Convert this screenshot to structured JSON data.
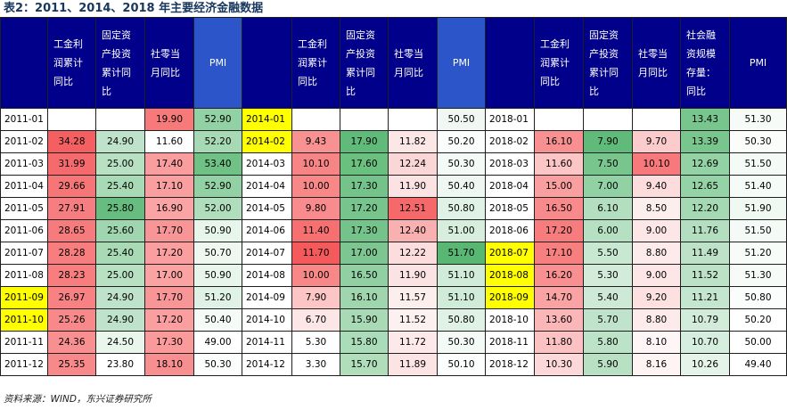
{
  "title": "表2：2011、2014、2018 年主要经济金融数据",
  "source": "资料来源：WIND，东兴证券研究所",
  "headers": [
    "",
    "工金利润累计同比",
    "固定资产投资累计同比",
    "社零当月同比",
    "PMI",
    "",
    "工金利润累计同比",
    "固定资产投资累计同比",
    "社零当月同比",
    "PMI",
    "",
    "工金利润累计同比",
    "固定资产投资累计同比",
    "社零当月同比",
    "社会融资规模存量：同比",
    "PMI"
  ],
  "colors": {
    "header_bg": "#00008b",
    "highlight_date": "#ffff00",
    "red_high": "#ef5350",
    "green_high": "#4caf6a"
  },
  "rows": [
    {
      "cells": [
        "2011-01",
        "",
        "",
        "19.90",
        "52.90",
        "2014-01",
        "",
        "",
        "",
        "50.50",
        "2018-01",
        "",
        "",
        "",
        "13.43",
        "51.30"
      ],
      "bg": [
        "",
        "",
        "",
        "#f77a7b",
        "#92d1a3",
        "#ffff00",
        "",
        "",
        "",
        "#f1f8f3",
        "",
        "",
        "",
        "",
        "#79c58e",
        "#f6fbf7"
      ]
    },
    {
      "cells": [
        "2011-02",
        "34.28",
        "24.90",
        "11.60",
        "52.20",
        "2014-02",
        "9.43",
        "17.90",
        "11.82",
        "50.20",
        "2018-02",
        "16.10",
        "7.90",
        "9.70",
        "13.39",
        "50.30"
      ],
      "bg": [
        "",
        "#f45f61",
        "#bfe3ca",
        "",
        "#a6d9b4",
        "#ffff00",
        "#f89192",
        "#60bb7a",
        "#fce7e7",
        "#fafdfb",
        "",
        "#f89091",
        "#60bb7a",
        "#fccccd",
        "#79c58e",
        "#fbfdfb"
      ]
    },
    {
      "cells": [
        "2011-03",
        "31.99",
        "25.00",
        "17.40",
        "53.40",
        "2014-03",
        "10.10",
        "17.60",
        "12.24",
        "50.30",
        "2018-03",
        "11.60",
        "7.50",
        "10.10",
        "12.69",
        "51.50"
      ],
      "bg": [
        "",
        "#f56b6d",
        "#b8e1c3",
        "#f99d9e",
        "#6fc186",
        "",
        "#f88586",
        "#6ac07f",
        "#fbd6d6",
        "#f4faf6",
        "",
        "#fcc5c6",
        "#79c58e",
        "#f7797b",
        "#93d2a5",
        "#f4faf6"
      ]
    },
    {
      "cells": [
        "2011-04",
        "29.66",
        "25.40",
        "17.10",
        "52.90",
        "2014-04",
        "10.00",
        "17.30",
        "11.90",
        "50.40",
        "2018-04",
        "15.00",
        "7.00",
        "9.40",
        "12.65",
        "51.40"
      ],
      "bg": [
        "",
        "#f67677",
        "#a9dab6",
        "#fa9fa0",
        "#92d1a3",
        "",
        "#f88788",
        "#74c38a",
        "#fce3e3",
        "#eef7f1",
        "",
        "#f99fa0",
        "#91d1a4",
        "#fcdcdc",
        "#94d3a6",
        "#f5fbf7"
      ]
    },
    {
      "cells": [
        "2011-05",
        "27.91",
        "25.80",
        "16.90",
        "52.00",
        "2014-05",
        "9.80",
        "17.20",
        "12.51",
        "50.80",
        "2018-05",
        "16.50",
        "6.10",
        "8.50",
        "12.20",
        "51.90"
      ],
      "bg": [
        "",
        "#f77e80",
        "#67bd7f",
        "#fba4a5",
        "#b0ddbc",
        "",
        "#f88b8d",
        "#77c48c",
        "#f6696b",
        "#e0f2e5",
        "",
        "#f88a8b",
        "#b3dfc0",
        "#fdeeee",
        "#a4d9b3",
        "#f0f8f2"
      ]
    },
    {
      "cells": [
        "2011-06",
        "28.65",
        "25.60",
        "17.70",
        "50.90",
        "2014-06",
        "11.40",
        "17.30",
        "12.40",
        "51.00",
        "2018-06",
        "17.20",
        "6.00",
        "9.00",
        "11.76",
        "51.50"
      ],
      "bg": [
        "",
        "#f67b7c",
        "#a0d6af",
        "#f89697",
        "#e7f5ea",
        "",
        "#f67071",
        "#74c38a",
        "#f9b0b1",
        "#d7eedd",
        "",
        "#f77c7e",
        "#b5e0c2",
        "#fde6e6",
        "#b3dfc0",
        "#f4faf6"
      ]
    },
    {
      "cells": [
        "2011-07",
        "28.28",
        "25.40",
        "17.20",
        "50.70",
        "2014-07",
        "11.70",
        "17.00",
        "12.22",
        "51.70",
        "2018-07",
        "17.10",
        "5.50",
        "8.80",
        "11.49",
        "51.20"
      ],
      "bg": [
        "",
        "#f77d7e",
        "#a9dab6",
        "#fa9e9f",
        "#eef8f1",
        "",
        "#f4595b",
        "#7dc691",
        "#fbdddd",
        "#59b774",
        "#ffff00",
        "#f87f80",
        "#c9e8d2",
        "#fdeaea",
        "#bde2c8",
        "#f7fcf8"
      ]
    },
    {
      "cells": [
        "2011-08",
        "28.23",
        "25.00",
        "17.00",
        "50.90",
        "2014-08",
        "10.00",
        "16.50",
        "11.90",
        "51.10",
        "2018-08",
        "16.20",
        "5.30",
        "9.00",
        "11.52",
        "51.30"
      ],
      "bg": [
        "",
        "#f77d7f",
        "#b8e1c3",
        "#fba2a3",
        "#e7f5ea",
        "",
        "#f88788",
        "#90d0a2",
        "#fce3e3",
        "#d0ebd7",
        "#ffff00",
        "#f88f90",
        "#d2ecd9",
        "#fde6e6",
        "#bbe1c6",
        "#f6fbf7"
      ]
    },
    {
      "cells": [
        "2011-09",
        "26.97",
        "24.90",
        "17.70",
        "51.20",
        "2014-09",
        "7.90",
        "16.10",
        "11.57",
        "51.10",
        "2018-09",
        "14.70",
        "5.40",
        "9.20",
        "11.21",
        "50.80"
      ],
      "bg": [
        "#ffff00",
        "#f88283",
        "#bfe3ca",
        "#f89697",
        "#dff2e5",
        "",
        "#fcc5c6",
        "#9fd6ae",
        "#fdeeee",
        "#d0ebd7",
        "#ffff00",
        "#faa3a4",
        "#cee9d5",
        "#fde1e1",
        "#c5e6ce",
        "#fafdfb"
      ]
    },
    {
      "cells": [
        "2011-10",
        "25.26",
        "24.90",
        "17.20",
        "50.40",
        "2014-10",
        "6.70",
        "15.90",
        "11.52",
        "50.80",
        "2018-10",
        "13.60",
        "5.70",
        "8.80",
        "10.79",
        "50.20"
      ],
      "bg": [
        "#ffff00",
        "#f8898a",
        "#bfe3ca",
        "#fa9e9f",
        "#f5fbf7",
        "",
        "#fde6e6",
        "#a8dab5",
        "#fdf0f0",
        "#e0f2e5",
        "",
        "#fbb6b7",
        "#c0e4cb",
        "#fdeaea",
        "#d3ecda",
        "#fefffe"
      ]
    },
    {
      "cells": [
        "2011-11",
        "24.36",
        "24.50",
        "17.30",
        "49.00",
        "2014-11",
        "5.30",
        "15.80",
        "11.72",
        "50.30",
        "2018-11",
        "11.80",
        "5.80",
        "8.10",
        "10.70",
        "50.00"
      ],
      "bg": [
        "",
        "#f88f90",
        "#e8f6ec",
        "#fa9a9b",
        "",
        "",
        "#ffffff",
        "#abdcb9",
        "#fde9e9",
        "#f4faf6",
        "",
        "#fcc1c2",
        "#bce2c7",
        "#fef6f6",
        "#d6eedd",
        ""
      ]
    },
    {
      "cells": [
        "2011-12",
        "25.35",
        "23.80",
        "18.10",
        "50.30",
        "2014-12",
        "3.30",
        "15.70",
        "11.89",
        "50.10",
        "2018-12",
        "10.30",
        "5.90",
        "8.16",
        "10.26",
        "49.40"
      ],
      "bg": [
        "",
        "#f8898a",
        "",
        "#f78e8f",
        "#fafdfb",
        "",
        "",
        "#b0debb",
        "#fce4e4",
        "#fcfefd",
        "",
        "#fdd8d9",
        "#b8e1c3",
        "#fef4f4",
        "#e5f4e9",
        ""
      ]
    }
  ]
}
